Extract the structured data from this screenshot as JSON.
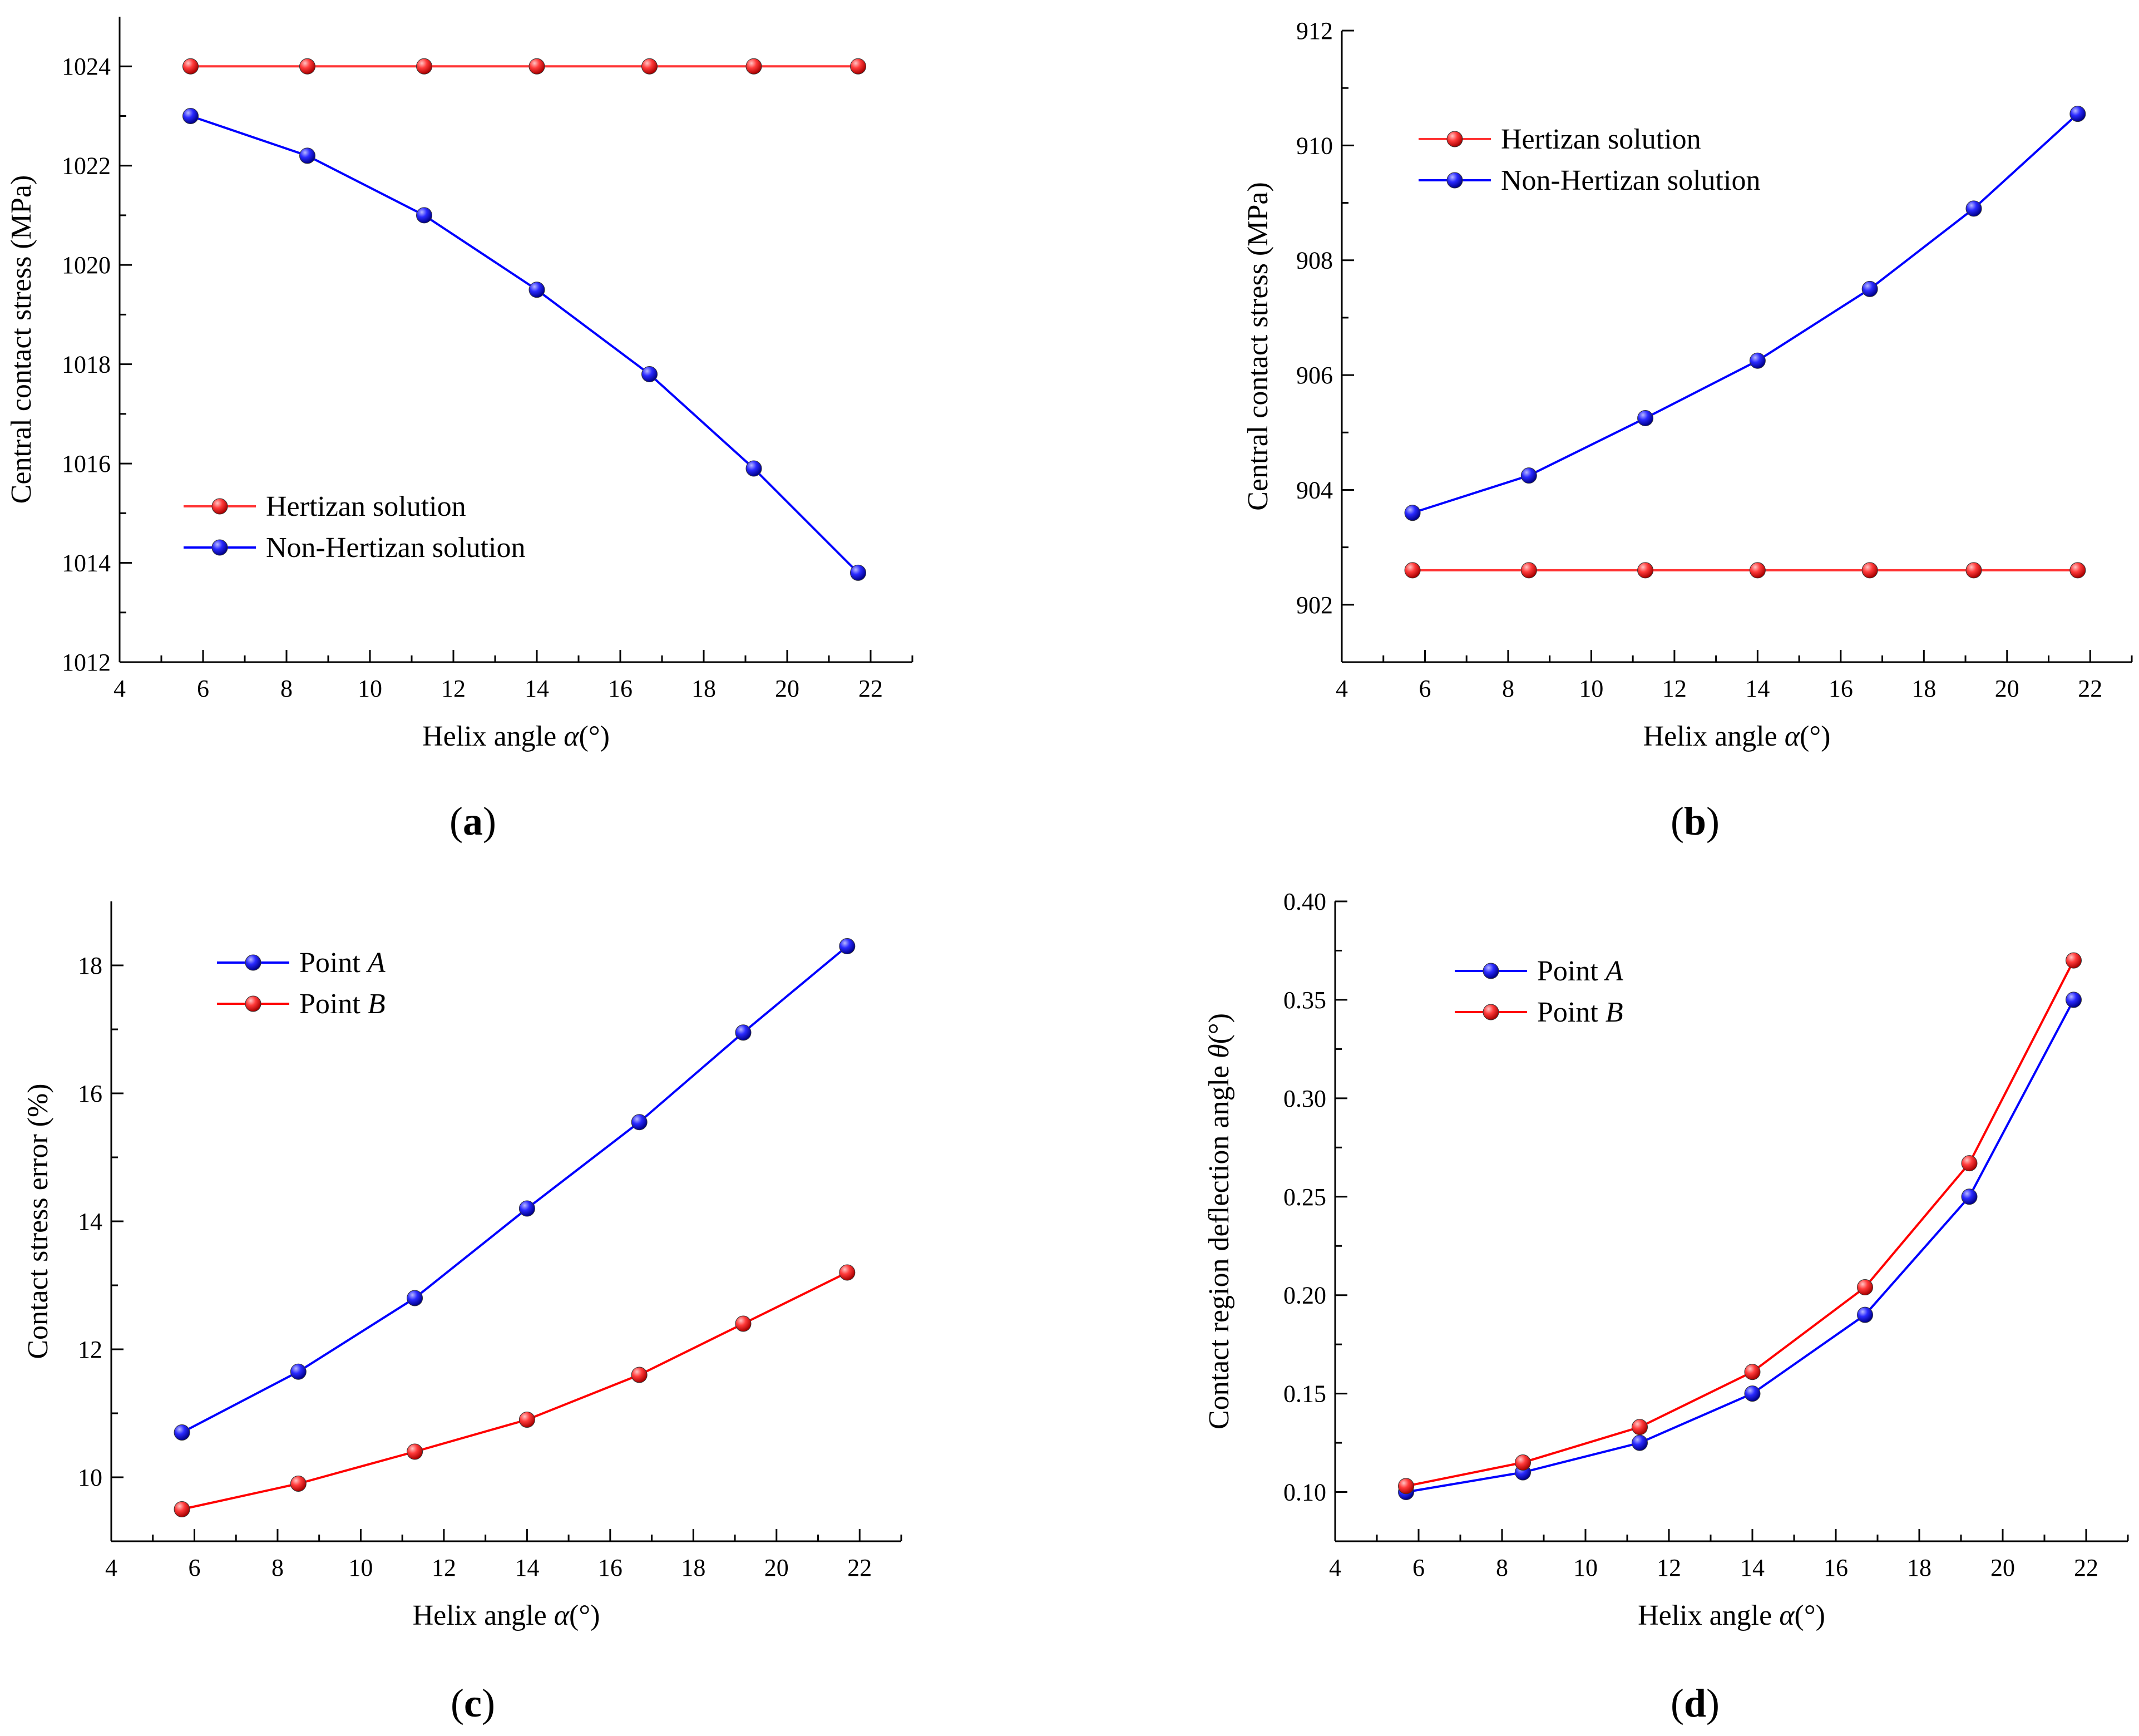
{
  "figure": {
    "panels": [
      {
        "label_open": "(",
        "label_letter": "a",
        "label_close": ")"
      },
      {
        "label_open": "(",
        "label_letter": "b",
        "label_close": ")"
      },
      {
        "label_open": "(",
        "label_letter": "c",
        "label_close": ")"
      },
      {
        "label_open": "(",
        "label_letter": "d",
        "label_close": ")"
      }
    ]
  },
  "chart_data": [
    {
      "type": "line",
      "panel": "a",
      "xlabel": "Helix angle α(°)",
      "ylabel": "Central contact stress (MPa)",
      "xlim": [
        4,
        23
      ],
      "ylim": [
        1012,
        1025
      ],
      "xticks": [
        4,
        6,
        8,
        10,
        12,
        14,
        16,
        18,
        20,
        22
      ],
      "yticks": [
        1012,
        1014,
        1016,
        1018,
        1020,
        1022,
        1024
      ],
      "legend_position": "center-left",
      "x": [
        5.7,
        8.5,
        11.3,
        14.0,
        16.7,
        19.2,
        21.7
      ],
      "series": [
        {
          "name": "Hertizan solution",
          "color": "#ff3333",
          "values": [
            1024,
            1024,
            1024,
            1024,
            1024,
            1024,
            1024
          ]
        },
        {
          "name": "Non-Hertizan solution",
          "color": "#0000ff",
          "values": [
            1023.0,
            1022.2,
            1021.0,
            1019.5,
            1017.8,
            1015.9,
            1013.8
          ]
        }
      ]
    },
    {
      "type": "line",
      "panel": "b",
      "xlabel": "Helix angle α(°)",
      "ylabel": "Central contact stress (MPa)",
      "xlim": [
        4,
        23
      ],
      "ylim": [
        901,
        912
      ],
      "xticks": [
        4,
        6,
        8,
        10,
        12,
        14,
        16,
        18,
        20,
        22
      ],
      "yticks": [
        902,
        904,
        906,
        908,
        910,
        912
      ],
      "legend_position": "top-left",
      "x": [
        5.7,
        8.5,
        11.3,
        14.0,
        16.7,
        19.2,
        21.7
      ],
      "series": [
        {
          "name": "Hertizan solution",
          "color": "#ff3333",
          "values": [
            902.6,
            902.6,
            902.6,
            902.6,
            902.6,
            902.6,
            902.6
          ]
        },
        {
          "name": "Non-Hertizan solution",
          "color": "#0000ff",
          "values": [
            903.6,
            904.25,
            905.25,
            906.25,
            907.5,
            908.9,
            910.55
          ]
        }
      ]
    },
    {
      "type": "line",
      "panel": "c",
      "xlabel": "Helix angle α(°)",
      "ylabel": "Contact stress error (%)",
      "xlim": [
        4,
        23
      ],
      "ylim": [
        9,
        19
      ],
      "xticks": [
        4,
        6,
        8,
        10,
        12,
        14,
        16,
        18,
        20,
        22
      ],
      "yticks": [
        10,
        12,
        14,
        16,
        18
      ],
      "legend_position": "top-left",
      "x": [
        5.7,
        8.5,
        11.3,
        14.0,
        16.7,
        19.2,
        21.7
      ],
      "series": [
        {
          "name": "Point A",
          "name_prefix": "Point ",
          "name_italic": "A",
          "color": "#0000ff",
          "values": [
            10.7,
            11.65,
            12.8,
            14.2,
            15.55,
            16.95,
            18.3
          ]
        },
        {
          "name": "Point B",
          "name_prefix": "Point ",
          "name_italic": "B",
          "color": "#ff0000",
          "values": [
            9.5,
            9.9,
            10.4,
            10.9,
            11.6,
            12.4,
            13.2
          ]
        }
      ]
    },
    {
      "type": "line",
      "panel": "d",
      "xlabel": "Helix angle α(°)",
      "ylabel": "Contact region deflection angle θ(°)",
      "xlim": [
        4,
        23
      ],
      "ylim": [
        0.075,
        0.4
      ],
      "xticks": [
        4,
        6,
        8,
        10,
        12,
        14,
        16,
        18,
        20,
        22
      ],
      "yticks": [
        0.1,
        0.15,
        0.2,
        0.25,
        0.3,
        0.35,
        0.4
      ],
      "ytick_labels": [
        "0.10",
        "0.15",
        "0.20",
        "0.25",
        "0.30",
        "0.35",
        "0.40"
      ],
      "legend_position": "top-left",
      "x": [
        5.7,
        8.5,
        11.3,
        14.0,
        16.7,
        19.2,
        21.7
      ],
      "series": [
        {
          "name": "Point A",
          "name_prefix": "Point ",
          "name_italic": "A",
          "color": "#0000ff",
          "values": [
            0.1,
            0.11,
            0.125,
            0.15,
            0.19,
            0.25,
            0.35
          ]
        },
        {
          "name": "Point B",
          "name_prefix": "Point ",
          "name_italic": "B",
          "color": "#ff0000",
          "values": [
            0.103,
            0.115,
            0.133,
            0.161,
            0.204,
            0.267,
            0.37
          ]
        }
      ]
    }
  ]
}
